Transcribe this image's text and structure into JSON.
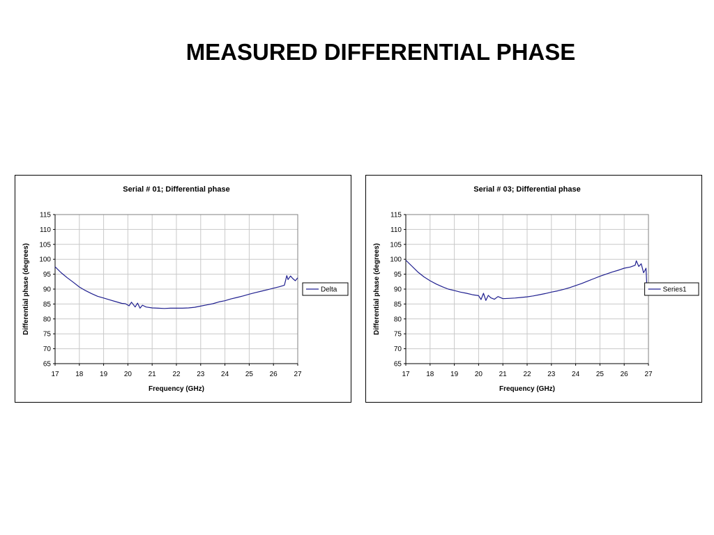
{
  "slide": {
    "title": "MEASURED DIFFERENTIAL PHASE"
  },
  "chart_data": [
    {
      "type": "line",
      "title": "Serial # 01; Differential phase",
      "xlabel": "Frequency (GHz)",
      "ylabel": "Differential phase (degrees)",
      "xlim": [
        17,
        27
      ],
      "ylim": [
        65,
        115
      ],
      "xticks": [
        17,
        18,
        19,
        20,
        21,
        22,
        23,
        24,
        25,
        26,
        27
      ],
      "yticks": [
        65,
        70,
        75,
        80,
        85,
        90,
        95,
        100,
        105,
        110,
        115
      ],
      "grid": true,
      "legend": "right",
      "color": "#1f1f8f",
      "series": [
        {
          "name": "Delta",
          "x": [
            17.0,
            17.25,
            17.5,
            17.75,
            18.0,
            18.25,
            18.5,
            18.75,
            19.0,
            19.25,
            19.5,
            19.75,
            19.9,
            20.05,
            20.15,
            20.3,
            20.4,
            20.5,
            20.6,
            20.75,
            21.0,
            21.25,
            21.5,
            21.75,
            22.0,
            22.25,
            22.5,
            22.75,
            23.0,
            23.25,
            23.5,
            23.75,
            24.0,
            24.25,
            24.5,
            24.75,
            25.0,
            25.25,
            25.5,
            25.75,
            26.0,
            26.25,
            26.45,
            26.55,
            26.6,
            26.7,
            26.8,
            26.9,
            27.0
          ],
          "values": [
            97.5,
            95.5,
            93.8,
            92.3,
            90.7,
            89.5,
            88.5,
            87.6,
            87.0,
            86.4,
            85.8,
            85.2,
            85.1,
            84.4,
            85.6,
            84.0,
            85.3,
            83.6,
            84.6,
            84.0,
            83.7,
            83.6,
            83.5,
            83.6,
            83.6,
            83.6,
            83.7,
            83.9,
            84.3,
            84.7,
            85.1,
            85.7,
            86.1,
            86.7,
            87.2,
            87.7,
            88.3,
            88.8,
            89.3,
            89.8,
            90.3,
            90.8,
            91.3,
            94.5,
            93.2,
            94.4,
            93.5,
            92.8,
            93.8
          ]
        }
      ]
    },
    {
      "type": "line",
      "title": "Serial # 03; Differential phase",
      "xlabel": "Frequency (GHz)",
      "ylabel": "Differential phase (degrees)",
      "xlim": [
        17,
        27
      ],
      "ylim": [
        65,
        115
      ],
      "xticks": [
        17,
        18,
        19,
        20,
        21,
        22,
        23,
        24,
        25,
        26,
        27
      ],
      "yticks": [
        65,
        70,
        75,
        80,
        85,
        90,
        95,
        100,
        105,
        110,
        115
      ],
      "grid": true,
      "legend": "right",
      "color": "#1f1f8f",
      "series": [
        {
          "name": "Series1",
          "x": [
            17.0,
            17.25,
            17.5,
            17.75,
            18.0,
            18.25,
            18.5,
            18.75,
            19.0,
            19.25,
            19.5,
            19.75,
            20.0,
            20.1,
            20.2,
            20.3,
            20.4,
            20.5,
            20.65,
            20.8,
            21.0,
            21.25,
            21.5,
            21.75,
            22.0,
            22.25,
            22.5,
            22.75,
            23.0,
            23.25,
            23.5,
            23.75,
            24.0,
            24.25,
            24.5,
            24.75,
            25.0,
            25.25,
            25.5,
            25.75,
            26.0,
            26.25,
            26.45,
            26.5,
            26.6,
            26.7,
            26.8,
            26.85,
            26.9,
            26.95
          ],
          "values": [
            99.7,
            97.7,
            95.7,
            94.1,
            92.8,
            91.7,
            90.8,
            90.0,
            89.5,
            89.0,
            88.6,
            88.1,
            87.8,
            86.5,
            88.6,
            86.2,
            87.9,
            87.1,
            86.6,
            87.5,
            86.8,
            86.9,
            87.0,
            87.2,
            87.4,
            87.7,
            88.1,
            88.5,
            89.0,
            89.4,
            89.9,
            90.5,
            91.2,
            91.9,
            92.7,
            93.5,
            94.3,
            95.0,
            95.7,
            96.3,
            97.0,
            97.4,
            98.0,
            99.5,
            97.6,
            98.5,
            95.5,
            96.2,
            97.0,
            88.0
          ]
        }
      ]
    }
  ]
}
